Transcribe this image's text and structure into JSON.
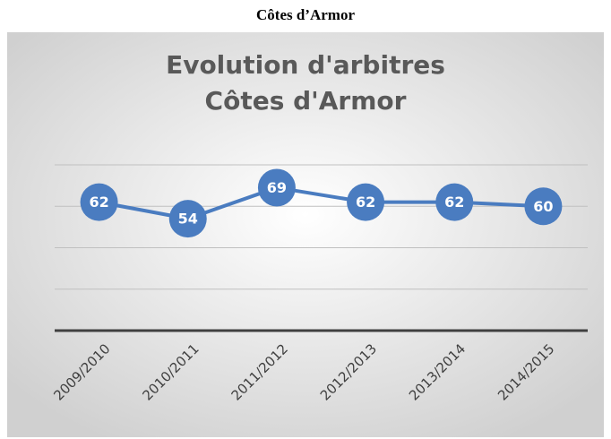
{
  "page_title": "Côtes d’Armor",
  "chart_data": {
    "type": "line",
    "title": [
      "Evolution d'arbitres",
      "Côtes d'Armor"
    ],
    "categories": [
      "2009/2010",
      "2010/2011",
      "2011/2012",
      "2012/2013",
      "2013/2014",
      "2014/2015"
    ],
    "values": [
      62,
      54,
      69,
      62,
      62,
      60
    ],
    "color": "#4a7cc0",
    "ylim": [
      0,
      80
    ],
    "yticks": [
      0,
      20,
      40,
      60,
      80
    ],
    "grid": true
  }
}
